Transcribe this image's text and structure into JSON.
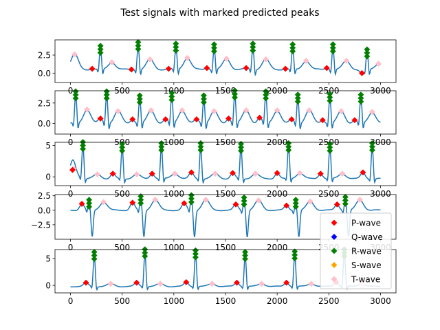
{
  "chart_data": {
    "type": "line",
    "title": "Test signals with marked predicted peaks",
    "x_range": [
      0,
      3000
    ],
    "x_ticks": [
      0,
      500,
      1000,
      1500,
      2000,
      2500,
      3000
    ],
    "legend": {
      "placement": "lower-right",
      "entries": [
        {
          "name": "P-wave",
          "color": "#ff0000",
          "marker": "diamond"
        },
        {
          "name": "Q-wave",
          "color": "#0000ff",
          "marker": "diamond"
        },
        {
          "name": "R-wave",
          "color": "#008000",
          "marker": "diamond"
        },
        {
          "name": "S-wave",
          "color": "#ffa500",
          "marker": "diamond"
        },
        {
          "name": "T-wave",
          "color": "#ffc0cb",
          "marker": "diamond"
        }
      ]
    },
    "line_color": "#1f77b4",
    "panels": [
      {
        "ylim": [
          -1.3,
          4.6
        ],
        "y_ticks": [
          0.0,
          2.5
        ],
        "y_tick_labels": [
          "0.0",
          "2.5"
        ],
        "baseline": 0.5,
        "r_peaks": [
          {
            "x": 290,
            "y": 3.3
          },
          {
            "x": 655,
            "y": 3.8
          },
          {
            "x": 1020,
            "y": 3.6
          },
          {
            "x": 1390,
            "y": 3.5
          },
          {
            "x": 1765,
            "y": 3.6
          },
          {
            "x": 2150,
            "y": 3.5
          },
          {
            "x": 2540,
            "y": 3.5
          },
          {
            "x": 2870,
            "y": 2.8
          }
        ],
        "p_peaks": [
          {
            "x": 210,
            "y": 0.6
          },
          {
            "x": 590,
            "y": 0.5
          },
          {
            "x": 950,
            "y": 0.6
          },
          {
            "x": 1320,
            "y": 0.7
          },
          {
            "x": 1700,
            "y": 0.7
          },
          {
            "x": 2080,
            "y": 0.6
          },
          {
            "x": 2480,
            "y": 0.7
          },
          {
            "x": 2820,
            "y": 0.0
          }
        ],
        "t_peaks": [
          {
            "x": 40,
            "y": 2.6
          },
          {
            "x": 400,
            "y": 1.5
          },
          {
            "x": 770,
            "y": 1.9
          },
          {
            "x": 1130,
            "y": 2.1
          },
          {
            "x": 1510,
            "y": 2.0
          },
          {
            "x": 1890,
            "y": 1.9
          },
          {
            "x": 2280,
            "y": 1.7
          },
          {
            "x": 2670,
            "y": 1.7
          },
          {
            "x": 2980,
            "y": 1.3
          }
        ]
      },
      {
        "ylim": [
          -1.3,
          4.0
        ],
        "y_ticks": [
          0.0,
          2.5
        ],
        "y_tick_labels": [
          "0.0",
          "2.5"
        ],
        "baseline": 0.0,
        "r_peaks": [
          {
            "x": 50,
            "y": 3.5
          },
          {
            "x": 350,
            "y": 3.5
          },
          {
            "x": 670,
            "y": 3.0
          },
          {
            "x": 980,
            "y": 3.3
          },
          {
            "x": 1290,
            "y": 3.0
          },
          {
            "x": 1590,
            "y": 3.6
          },
          {
            "x": 1890,
            "y": 3.5
          },
          {
            "x": 2200,
            "y": 3.1
          },
          {
            "x": 2510,
            "y": 3.2
          },
          {
            "x": 2810,
            "y": 3.1
          }
        ],
        "p_peaks": [
          {
            "x": 290,
            "y": 0.6
          },
          {
            "x": 600,
            "y": 0.5
          },
          {
            "x": 920,
            "y": 0.5
          },
          {
            "x": 1220,
            "y": 0.5
          },
          {
            "x": 1530,
            "y": 0.6
          },
          {
            "x": 1830,
            "y": 0.7
          },
          {
            "x": 2140,
            "y": 0.5
          },
          {
            "x": 2440,
            "y": 0.4
          },
          {
            "x": 2750,
            "y": 0.4
          }
        ],
        "t_peaks": [
          {
            "x": 160,
            "y": 1.7
          },
          {
            "x": 460,
            "y": 1.5
          },
          {
            "x": 780,
            "y": 1.6
          },
          {
            "x": 1080,
            "y": 1.6
          },
          {
            "x": 1390,
            "y": 1.5
          },
          {
            "x": 1700,
            "y": 1.6
          },
          {
            "x": 2000,
            "y": 1.6
          },
          {
            "x": 2310,
            "y": 1.6
          },
          {
            "x": 2620,
            "y": 1.5
          },
          {
            "x": 2920,
            "y": 1.4
          }
        ]
      },
      {
        "ylim": [
          -1.4,
          5.5
        ],
        "y_ticks": [
          0,
          5
        ],
        "y_tick_labels": [
          "0",
          "5"
        ],
        "baseline": -0.3,
        "r_peaks": [
          {
            "x": 120,
            "y": 5.0
          },
          {
            "x": 500,
            "y": 4.7
          },
          {
            "x": 880,
            "y": 4.8
          },
          {
            "x": 1260,
            "y": 4.8
          },
          {
            "x": 1650,
            "y": 4.7
          },
          {
            "x": 2110,
            "y": 4.8
          },
          {
            "x": 2510,
            "y": 4.7
          },
          {
            "x": 2920,
            "y": 4.8
          }
        ],
        "p_peaks": [
          {
            "x": 20,
            "y": 1.1
          },
          {
            "x": 410,
            "y": 0.5
          },
          {
            "x": 790,
            "y": 0.5
          },
          {
            "x": 1170,
            "y": 0.7
          },
          {
            "x": 1570,
            "y": 0.6
          },
          {
            "x": 2000,
            "y": 0.6
          },
          {
            "x": 2420,
            "y": 0.5
          },
          {
            "x": 2830,
            "y": 0.7
          }
        ],
        "t_peaks": [
          {
            "x": 30,
            "y": 1.3
          },
          {
            "x": 260,
            "y": 0.4
          },
          {
            "x": 640,
            "y": 0.4
          },
          {
            "x": 1010,
            "y": 0.5
          },
          {
            "x": 1400,
            "y": 0.5
          },
          {
            "x": 1790,
            "y": 0.5
          },
          {
            "x": 2220,
            "y": 0.6
          },
          {
            "x": 2630,
            "y": 0.5
          }
        ]
      },
      {
        "ylim": [
          -5.0,
          2.7
        ],
        "y_ticks": [
          2.5,
          0.0,
          -2.5
        ],
        "y_tick_labels": [
          "2.5",
          "0.0",
          "−2.5"
        ],
        "baseline": 0.0,
        "r_peaks": [
          {
            "x": 180,
            "y": 1.2
          },
          {
            "x": 680,
            "y": 1.8
          },
          {
            "x": 1170,
            "y": 2.0
          },
          {
            "x": 1680,
            "y": 1.6
          },
          {
            "x": 2180,
            "y": 1.2
          },
          {
            "x": 2660,
            "y": 1.7
          }
        ],
        "p_peaks": [
          {
            "x": 110,
            "y": 1.1
          },
          {
            "x": 600,
            "y": 1.3
          },
          {
            "x": 1100,
            "y": 1.2
          },
          {
            "x": 1600,
            "y": 1.0
          },
          {
            "x": 2090,
            "y": 0.8
          },
          {
            "x": 2580,
            "y": 1.0
          }
        ],
        "t_peaks": [
          {
            "x": 320,
            "y": 1.4
          },
          {
            "x": 820,
            "y": 1.8
          },
          {
            "x": 1310,
            "y": 1.8
          },
          {
            "x": 1820,
            "y": 1.7
          },
          {
            "x": 2320,
            "y": 1.5
          },
          {
            "x": 2800,
            "y": 1.8
          }
        ]
      },
      {
        "ylim": [
          -1.4,
          6.7
        ],
        "y_ticks": [
          0,
          5
        ],
        "y_tick_labels": [
          "0",
          "5"
        ],
        "baseline": -0.2,
        "r_peaks": [
          {
            "x": 230,
            "y": 5.6
          },
          {
            "x": 720,
            "y": 6.1
          },
          {
            "x": 1210,
            "y": 5.9
          },
          {
            "x": 1690,
            "y": 5.6
          },
          {
            "x": 2170,
            "y": 5.7
          },
          {
            "x": 2650,
            "y": 6.1
          }
        ],
        "p_peaks": [
          {
            "x": 150,
            "y": 0.5
          },
          {
            "x": 640,
            "y": 0.5
          },
          {
            "x": 1120,
            "y": 0.6
          },
          {
            "x": 1610,
            "y": 0.5
          },
          {
            "x": 2090,
            "y": 0.5
          },
          {
            "x": 2570,
            "y": 0.6
          }
        ],
        "t_peaks": [
          {
            "x": 390,
            "y": 0.3
          },
          {
            "x": 870,
            "y": 0.3
          },
          {
            "x": 1370,
            "y": 0.3
          },
          {
            "x": 1850,
            "y": 0.3
          },
          {
            "x": 2330,
            "y": 0.3
          },
          {
            "x": 2820,
            "y": 0.3
          }
        ]
      }
    ]
  }
}
